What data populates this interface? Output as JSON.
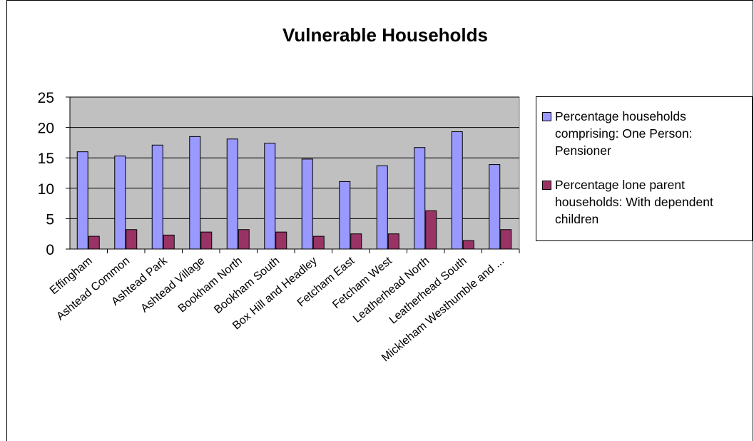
{
  "chart_data": {
    "type": "bar",
    "title": "Vulnerable Households",
    "xlabel": "",
    "ylabel": "",
    "ylim": [
      0,
      25
    ],
    "yticks": [
      "0",
      "5",
      "10",
      "15",
      "20",
      "25"
    ],
    "grid": true,
    "legend_position": "right",
    "plot_background": "#c0c0c0",
    "categories": [
      "Effingham",
      "Ashtead Common",
      "Ashtead Park",
      "Ashtead Village",
      "Bookham North",
      "Bookham South",
      "Box Hill and Headley",
      "Fetcham East",
      "Fetcham West",
      "Leatherhead North",
      "Leatherhead South",
      "Mickleham Westhumble and ..."
    ],
    "series": [
      {
        "name": "Percentage households comprising: One Person: Pensioner",
        "color": "#9999ff",
        "values": [
          16.0,
          15.3,
          17.1,
          18.5,
          18.1,
          17.4,
          14.8,
          11.1,
          13.7,
          16.7,
          19.3,
          13.9
        ]
      },
      {
        "name": "Percentage lone parent households: With dependent children",
        "color": "#993366",
        "values": [
          2.1,
          3.2,
          2.3,
          2.8,
          3.2,
          2.8,
          2.1,
          2.5,
          2.5,
          6.3,
          1.4,
          3.2
        ]
      }
    ]
  }
}
